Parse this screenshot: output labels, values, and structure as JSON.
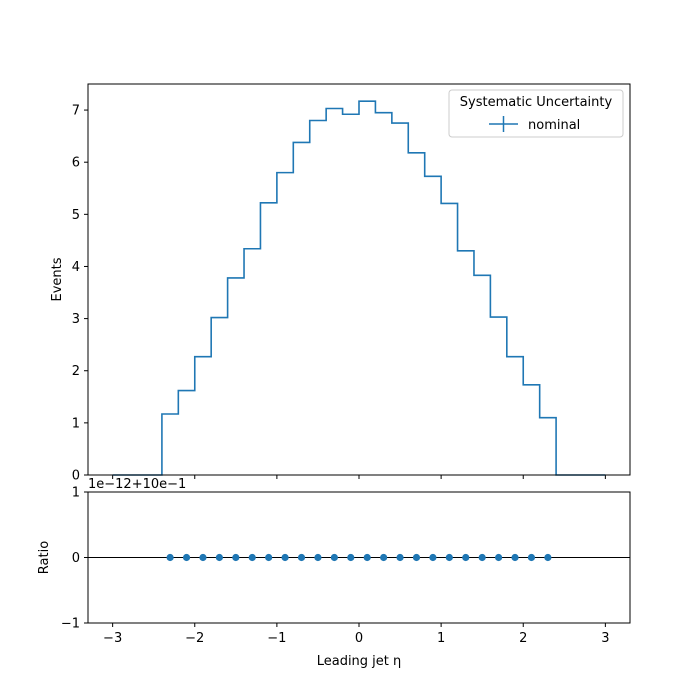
{
  "chart_data": [
    {
      "type": "line",
      "style": "step-histogram",
      "ylabel": "Events",
      "xlim": [
        -3.3,
        3.3
      ],
      "ylim": [
        0,
        7.5
      ],
      "yticks": [
        0,
        1,
        2,
        3,
        4,
        5,
        6,
        7
      ],
      "xticks": [
        -3,
        -2,
        -1,
        0,
        1,
        2,
        3
      ],
      "grid": false,
      "legend": {
        "title": "Systematic Uncertainty",
        "location": "top-right",
        "entries": [
          "nominal"
        ]
      },
      "bin_edges": [
        -3.0,
        -2.4,
        -2.2,
        -2.0,
        -1.8,
        -1.6,
        -1.4,
        -1.2,
        -1.0,
        -0.8,
        -0.6,
        -0.4,
        -0.2,
        0.0,
        0.2,
        0.4,
        0.6,
        0.8,
        1.0,
        1.2,
        1.4,
        1.6,
        1.8,
        2.0,
        2.2,
        2.4,
        3.0
      ],
      "series": [
        {
          "name": "nominal",
          "color": "#1f77b4",
          "values": [
            0.0,
            1.17,
            1.62,
            2.27,
            3.02,
            3.78,
            4.34,
            5.22,
            5.8,
            6.38,
            6.8,
            7.03,
            6.92,
            7.17,
            6.95,
            6.75,
            6.18,
            5.73,
            5.21,
            4.3,
            3.83,
            3.03,
            2.27,
            1.73,
            1.1,
            0.0
          ]
        }
      ]
    },
    {
      "type": "scatter",
      "xlabel": "Leading jet  η",
      "ylabel": "Ratio",
      "offset_text": "1e−12+10e−1",
      "xlim": [
        -3.3,
        3.3
      ],
      "ylim": [
        -1,
        1
      ],
      "yticks": [
        -1,
        0,
        1
      ],
      "xticks": [
        -3,
        -2,
        -1,
        0,
        1,
        2,
        3
      ],
      "reference_line": 0,
      "series": [
        {
          "color": "#1f77b4",
          "x": [
            -2.3,
            -2.1,
            -1.9,
            -1.7,
            -1.5,
            -1.3,
            -1.1,
            -0.9,
            -0.7,
            -0.5,
            -0.3,
            -0.1,
            0.1,
            0.3,
            0.5,
            0.7,
            0.9,
            1.1,
            1.3,
            1.5,
            1.7,
            1.9,
            2.1,
            2.3
          ],
          "y": [
            0,
            0,
            0,
            0,
            0,
            0,
            0,
            0,
            0,
            0,
            0,
            0,
            0,
            0,
            0,
            0,
            0,
            0,
            0,
            0,
            0,
            0,
            0,
            0
          ]
        }
      ]
    }
  ]
}
